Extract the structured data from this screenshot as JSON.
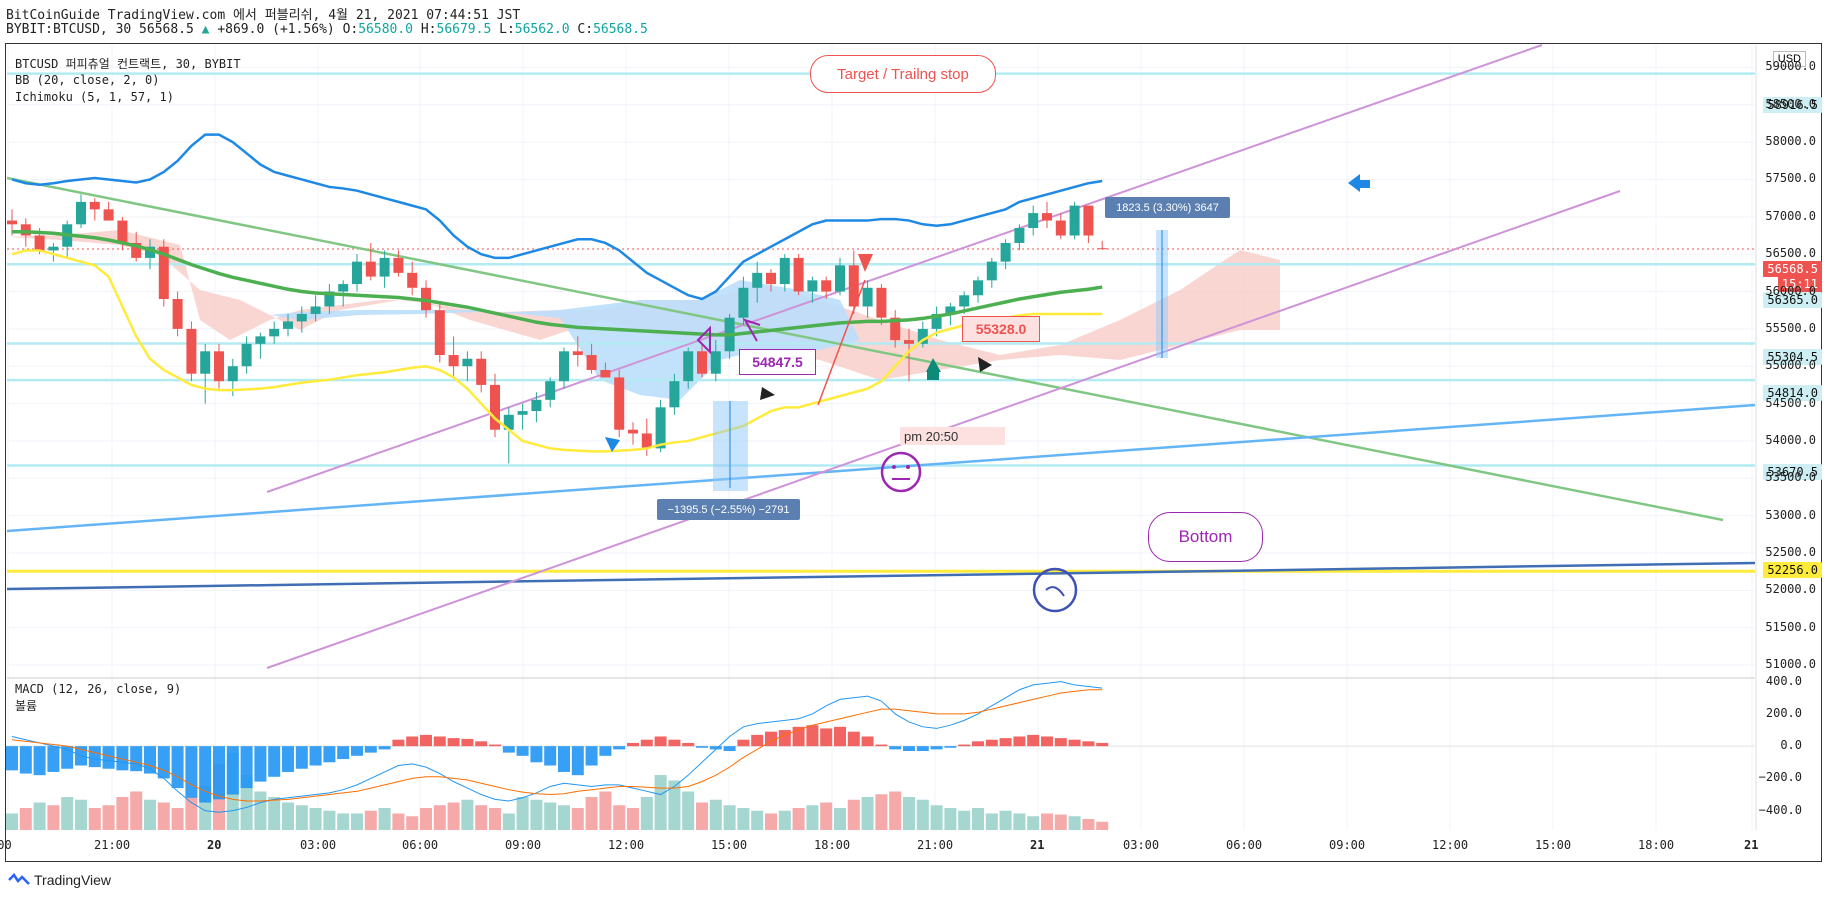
{
  "header": {
    "line1": "BitCoinGuide TradingView.com 에서 퍼블리쉬, 4월 21, 2021 07:44:51 JST",
    "symbol": "BYBIT:BTCUSD, 30 56568.5",
    "change": "+869.0 (+1.56%)",
    "o_label": "O:",
    "o": "56580.0",
    "h_label": "H:",
    "h": "56679.5",
    "l_label": "L:",
    "l": "56562.0",
    "c_label": "C:",
    "c": "56568.5"
  },
  "legend": {
    "main": "BTCUSD 퍼피츄얼 컨트랙트, 30, BYBIT",
    "bb": "BB (20, close, 2, 0)",
    "ichimoku": "Ichimoku (5, 1, 57, 1)",
    "macd": "MACD (12, 26, close, 9)",
    "volume": "볼륨"
  },
  "currency": "USD",
  "annotations": {
    "target": "Target / Trailng stop",
    "bottom": "Bottom",
    "label_54847": "54847.5",
    "label_55328": "55328.0",
    "time_note": "pm 20:50",
    "measure_down": "−1395.5 (−2.55%) −2791",
    "measure_up": "1823.5 (3.30%) 3647"
  },
  "price_tags": [
    {
      "text": "58916.5",
      "bg": "#cdeef2",
      "color": "#111"
    },
    {
      "text": "56568.5",
      "bg": "#ef5350",
      "color": "#fff"
    },
    {
      "text": "15:11",
      "bg": "#ef5350",
      "color": "#fff"
    },
    {
      "text": "56365.0",
      "bg": "#cdeef2",
      "color": "#111"
    },
    {
      "text": "55304.5",
      "bg": "#cdeef2",
      "color": "#111"
    },
    {
      "text": "54814.0",
      "bg": "#cdeef2",
      "color": "#111"
    },
    {
      "text": "53670.5",
      "bg": "#cdeef2",
      "color": "#111"
    },
    {
      "text": "52256.0",
      "bg": "#ffeb3b",
      "color": "#111"
    }
  ],
  "footer": {
    "brand": "TradingView"
  },
  "colors": {
    "up": "#26a69a",
    "down": "#ef5350",
    "bb": "#1e88e5",
    "yellow": "#ffeb3b",
    "green": "#4caf50",
    "cloud_up": "#f8c8c4",
    "cloud_down": "#bbdefb",
    "channel": "#ce93d8",
    "trend_blue": "#64b5f6",
    "trend_green": "#81c784"
  },
  "chart_data": {
    "type": "candlestick",
    "title": "BTCUSD 퍼피츄얼 컨트랙트, 30, BYBIT",
    "ylim": [
      50800,
      59300
    ],
    "y_ticks": [
      51000,
      51500,
      52000,
      52500,
      53000,
      53500,
      54000,
      54500,
      55000,
      55500,
      56000,
      56500,
      57000,
      57500,
      58000,
      58500,
      59000
    ],
    "y_tick_labels": [
      "51000.0",
      "51500.0",
      "52000.0",
      "52500.0",
      "53000.0",
      "53500.0",
      "54000.0",
      "54500.0",
      "55000.0",
      "55500.0",
      "56000.0",
      "56500.0",
      "57000.0",
      "57500.0",
      "58000.0",
      "58500.0",
      "59000.0"
    ],
    "x_tick_labels": [
      ":00",
      "21:00",
      "20",
      "03:00",
      "06:00",
      "09:00",
      "12:00",
      "15:00",
      "18:00",
      "21:00",
      "21",
      "03:00",
      "06:00",
      "09:00",
      "12:00",
      "15:00",
      "18:00",
      "21"
    ],
    "candles": [
      [
        56950,
        57100,
        56750,
        56900
      ],
      [
        56900,
        56980,
        56600,
        56750
      ],
      [
        56750,
        56850,
        56500,
        56550
      ],
      [
        56550,
        56650,
        56400,
        56600
      ],
      [
        56600,
        56950,
        56450,
        56900
      ],
      [
        56900,
        57300,
        56850,
        57200
      ],
      [
        57200,
        57250,
        56950,
        57100
      ],
      [
        57100,
        57200,
        56950,
        56950
      ],
      [
        56950,
        57000,
        56550,
        56650
      ],
      [
        56650,
        56800,
        56400,
        56450
      ],
      [
        56450,
        56700,
        56300,
        56600
      ],
      [
        56600,
        56700,
        55800,
        55900
      ],
      [
        55900,
        56000,
        55400,
        55500
      ],
      [
        55500,
        55600,
        54800,
        54900
      ],
      [
        54900,
        55300,
        54500,
        55200
      ],
      [
        55200,
        55300,
        54700,
        54800
      ],
      [
        54800,
        55100,
        54600,
        55000
      ],
      [
        55000,
        55400,
        54900,
        55300
      ],
      [
        55300,
        55450,
        55100,
        55400
      ],
      [
        55400,
        55600,
        55300,
        55500
      ],
      [
        55500,
        55700,
        55400,
        55600
      ],
      [
        55600,
        55800,
        55450,
        55700
      ],
      [
        55700,
        55950,
        55600,
        55800
      ],
      [
        55800,
        56100,
        55700,
        56000
      ],
      [
        56000,
        56150,
        55800,
        56100
      ],
      [
        56100,
        56500,
        56000,
        56400
      ],
      [
        56400,
        56650,
        56150,
        56200
      ],
      [
        56200,
        56550,
        56050,
        56450
      ],
      [
        56450,
        56550,
        56200,
        56250
      ],
      [
        56250,
        56400,
        55950,
        56050
      ],
      [
        56050,
        56150,
        55650,
        55750
      ],
      [
        55750,
        55850,
        55050,
        55150
      ],
      [
        55150,
        55400,
        54850,
        55000
      ],
      [
        55000,
        55200,
        54800,
        55100
      ],
      [
        55100,
        55200,
        54650,
        54750
      ],
      [
        54750,
        54900,
        54050,
        54150
      ],
      [
        54150,
        54450,
        53700,
        54350
      ],
      [
        54350,
        54500,
        54150,
        54400
      ],
      [
        54400,
        54650,
        54250,
        54550
      ],
      [
        54550,
        54850,
        54450,
        54800
      ],
      [
        54800,
        55250,
        54700,
        55200
      ],
      [
        55200,
        55400,
        55000,
        55150
      ],
      [
        55150,
        55300,
        54900,
        54950
      ],
      [
        54950,
        55050,
        54850,
        54850
      ],
      [
        54850,
        54950,
        54050,
        54150
      ],
      [
        54150,
        54250,
        53950,
        54100
      ],
      [
        54100,
        54300,
        53800,
        53900
      ],
      [
        53900,
        54550,
        53850,
        54450
      ],
      [
        54450,
        54900,
        54350,
        54800
      ],
      [
        54800,
        55250,
        54700,
        55200
      ],
      [
        55200,
        55300,
        54850,
        54900
      ],
      [
        54900,
        55350,
        54800,
        55200
      ],
      [
        55200,
        55700,
        55100,
        55650
      ],
      [
        55650,
        56200,
        55550,
        56050
      ],
      [
        56050,
        56400,
        55850,
        56250
      ],
      [
        56250,
        56300,
        56000,
        56100
      ],
      [
        56100,
        56500,
        56000,
        56450
      ],
      [
        56450,
        56500,
        55950,
        56000
      ],
      [
        56000,
        56200,
        55850,
        56150
      ],
      [
        56150,
        56200,
        55900,
        56000
      ],
      [
        56000,
        56450,
        55950,
        56350
      ],
      [
        56350,
        56550,
        55700,
        55800
      ],
      [
        55800,
        56150,
        55650,
        56050
      ],
      [
        56050,
        56100,
        55550,
        55650
      ],
      [
        55650,
        55750,
        55250,
        55350
      ],
      [
        55350,
        55500,
        54800,
        55300
      ],
      [
        55300,
        55600,
        55250,
        55500
      ],
      [
        55500,
        55800,
        55400,
        55700
      ],
      [
        55700,
        55850,
        55550,
        55800
      ],
      [
        55800,
        56000,
        55700,
        55950
      ],
      [
        55950,
        56200,
        55850,
        56150
      ],
      [
        56150,
        56450,
        56050,
        56400
      ],
      [
        56400,
        56700,
        56300,
        56650
      ],
      [
        56650,
        56900,
        56550,
        56850
      ],
      [
        56850,
        57150,
        56750,
        57050
      ],
      [
        57050,
        57200,
        56850,
        56950
      ],
      [
        56950,
        57050,
        56700,
        56750
      ],
      [
        56750,
        57200,
        56700,
        57150
      ],
      [
        57150,
        57150,
        56650,
        56750
      ],
      [
        56580,
        56680,
        56560,
        56570
      ]
    ],
    "bb_middle": [
      56800,
      56800,
      56790,
      56780,
      56760,
      56740,
      56720,
      56690,
      56650,
      56610,
      56560,
      56500,
      56430,
      56360,
      56300,
      56240,
      56190,
      56150,
      56110,
      56070,
      56030,
      56000,
      55980,
      55970,
      55960,
      55950,
      55940,
      55930,
      55920,
      55900,
      55880,
      55850,
      55820,
      55790,
      55750,
      55710,
      55670,
      55630,
      55590,
      55560,
      55540,
      55520,
      55510,
      55500,
      55490,
      55480,
      55470,
      55460,
      55450,
      55440,
      55430,
      55420,
      55420,
      55440,
      55460,
      55480,
      55500,
      55520,
      55540,
      55560,
      55580,
      55590,
      55600,
      55600,
      55610,
      55620,
      55640,
      55670,
      55700,
      55740,
      55780,
      55820,
      55860,
      55900,
      55930,
      55960,
      55990,
      56010,
      56030,
      56060
    ],
    "bb_upper": [
      57500,
      57450,
      57430,
      57450,
      57480,
      57500,
      57520,
      57500,
      57480,
      57460,
      57500,
      57600,
      57750,
      57950,
      58100,
      58100,
      58000,
      57850,
      57700,
      57600,
      57550,
      57500,
      57450,
      57400,
      57380,
      57350,
      57300,
      57250,
      57200,
      57150,
      57100,
      56950,
      56750,
      56600,
      56500,
      56450,
      56450,
      56500,
      56550,
      56600,
      56650,
      56700,
      56700,
      56650,
      56550,
      56400,
      56250,
      56150,
      56050,
      55950,
      55900,
      56000,
      56200,
      56400,
      56500,
      56600,
      56700,
      56800,
      56900,
      56950,
      56950,
      56950,
      56950,
      56970,
      56970,
      56950,
      56900,
      56880,
      56900,
      56950,
      57000,
      57050,
      57100,
      57200,
      57250,
      57300,
      57350,
      57400,
      57450,
      57480
    ],
    "ichi_conv": [
      56500,
      56550,
      56550,
      56500,
      56450,
      56400,
      56350,
      56200,
      55800,
      55400,
      55100,
      54950,
      54850,
      54750,
      54700,
      54680,
      54680,
      54690,
      54700,
      54720,
      54750,
      54780,
      54800,
      54820,
      54850,
      54880,
      54900,
      54920,
      54950,
      54980,
      55000,
      54950,
      54850,
      54700,
      54500,
      54300,
      54150,
      54000,
      53950,
      53900,
      53880,
      53870,
      53860,
      53860,
      53870,
      53880,
      53900,
      53950,
      53980,
      54000,
      54050,
      54100,
      54150,
      54200,
      54300,
      54400,
      54450,
      54450,
      54500,
      54550,
      54600,
      54650,
      54700,
      54800,
      55000,
      55200,
      55350,
      55450,
      55500,
      55550,
      55600,
      55620,
      55650,
      55680,
      55700,
      55700,
      55700,
      55700,
      55700,
      55700
    ],
    "macd_hist": [
      -150,
      -170,
      -180,
      -160,
      -140,
      -120,
      -130,
      -140,
      -150,
      -155,
      -170,
      -200,
      -260,
      -320,
      -350,
      -330,
      -300,
      -260,
      -220,
      -190,
      -160,
      -140,
      -120,
      -100,
      -80,
      -60,
      -40,
      -20,
      40,
      60,
      70,
      60,
      50,
      45,
      30,
      10,
      -40,
      -60,
      -100,
      -120,
      -160,
      -180,
      -120,
      -60,
      -20,
      20,
      40,
      60,
      40,
      20,
      -10,
      -20,
      -30,
      40,
      70,
      90,
      100,
      120,
      130,
      110,
      120,
      90,
      60,
      10,
      -20,
      -30,
      -30,
      -20,
      -10,
      10,
      30,
      40,
      50,
      60,
      70,
      60,
      50,
      40,
      30,
      20
    ],
    "macd_line": [
      60,
      40,
      20,
      0,
      -20,
      -60,
      -80,
      -90,
      -100,
      -110,
      -140,
      -200,
      -280,
      -350,
      -400,
      -410,
      -400,
      -380,
      -350,
      -330,
      -320,
      -310,
      -300,
      -290,
      -270,
      -240,
      -200,
      -160,
      -120,
      -110,
      -130,
      -170,
      -220,
      -260,
      -300,
      -330,
      -340,
      -320,
      -290,
      -250,
      -230,
      -240,
      -250,
      -240,
      -240,
      -260,
      -280,
      -300,
      -250,
      -180,
      -100,
      -20,
      60,
      120,
      140,
      150,
      160,
      170,
      200,
      250,
      290,
      300,
      310,
      280,
      200,
      150,
      120,
      110,
      130,
      160,
      200,
      250,
      300,
      350,
      380,
      390,
      400,
      380,
      370,
      360
    ],
    "signal_line": [
      40,
      30,
      20,
      10,
      0,
      -20,
      -40,
      -60,
      -80,
      -100,
      -120,
      -150,
      -190,
      -240,
      -280,
      -310,
      -330,
      -340,
      -340,
      -335,
      -330,
      -320,
      -310,
      -300,
      -290,
      -280,
      -260,
      -240,
      -220,
      -200,
      -190,
      -190,
      -200,
      -210,
      -230,
      -250,
      -270,
      -285,
      -295,
      -300,
      -295,
      -280,
      -270,
      -260,
      -250,
      -250,
      -255,
      -260,
      -260,
      -250,
      -220,
      -180,
      -130,
      -70,
      -20,
      30,
      70,
      100,
      130,
      150,
      170,
      190,
      210,
      230,
      230,
      220,
      210,
      200,
      200,
      200,
      210,
      230,
      250,
      270,
      290,
      310,
      330,
      340,
      350,
      350
    ],
    "volume": [
      30,
      40,
      50,
      45,
      60,
      55,
      40,
      45,
      60,
      70,
      55,
      50,
      40,
      60,
      80,
      120,
      140,
      100,
      70,
      60,
      50,
      45,
      40,
      35,
      30,
      30,
      35,
      40,
      30,
      25,
      40,
      45,
      50,
      55,
      45,
      40,
      30,
      60,
      55,
      50,
      45,
      40,
      60,
      70,
      45,
      40,
      60,
      100,
      90,
      70,
      50,
      55,
      45,
      40,
      35,
      30,
      35,
      40,
      45,
      50,
      40,
      55,
      60,
      65,
      70,
      60,
      55,
      45,
      40,
      35,
      40,
      30,
      35,
      30,
      25,
      30,
      28,
      25,
      20,
      15
    ],
    "volume_dir": [
      1,
      0,
      1,
      0,
      1,
      1,
      0,
      0,
      0,
      0,
      1,
      0,
      0,
      0,
      1,
      0,
      1,
      1,
      1,
      1,
      1,
      1,
      1,
      1,
      1,
      1,
      0,
      1,
      0,
      0,
      0,
      0,
      0,
      1,
      0,
      0,
      1,
      1,
      1,
      1,
      1,
      0,
      0,
      0,
      0,
      0,
      1,
      1,
      1,
      1,
      0,
      1,
      1,
      1,
      1,
      0,
      1,
      0,
      1,
      0,
      1,
      0,
      1,
      0,
      0,
      1,
      1,
      1,
      1,
      1,
      1,
      1,
      1,
      1,
      1,
      0,
      0,
      1,
      0,
      0
    ],
    "horizontal_levels": [
      58916.5,
      56365.0,
      55304.5,
      54814.0,
      53670.5,
      52256.0
    ],
    "macd_ylim": [
      -520,
      460
    ],
    "macd_ticks": [
      400,
      200,
      0,
      -200,
      -400
    ],
    "macd_tick_labels": [
      "400.0",
      "200.0",
      "0.0",
      "−200.0",
      "−400.0"
    ]
  }
}
